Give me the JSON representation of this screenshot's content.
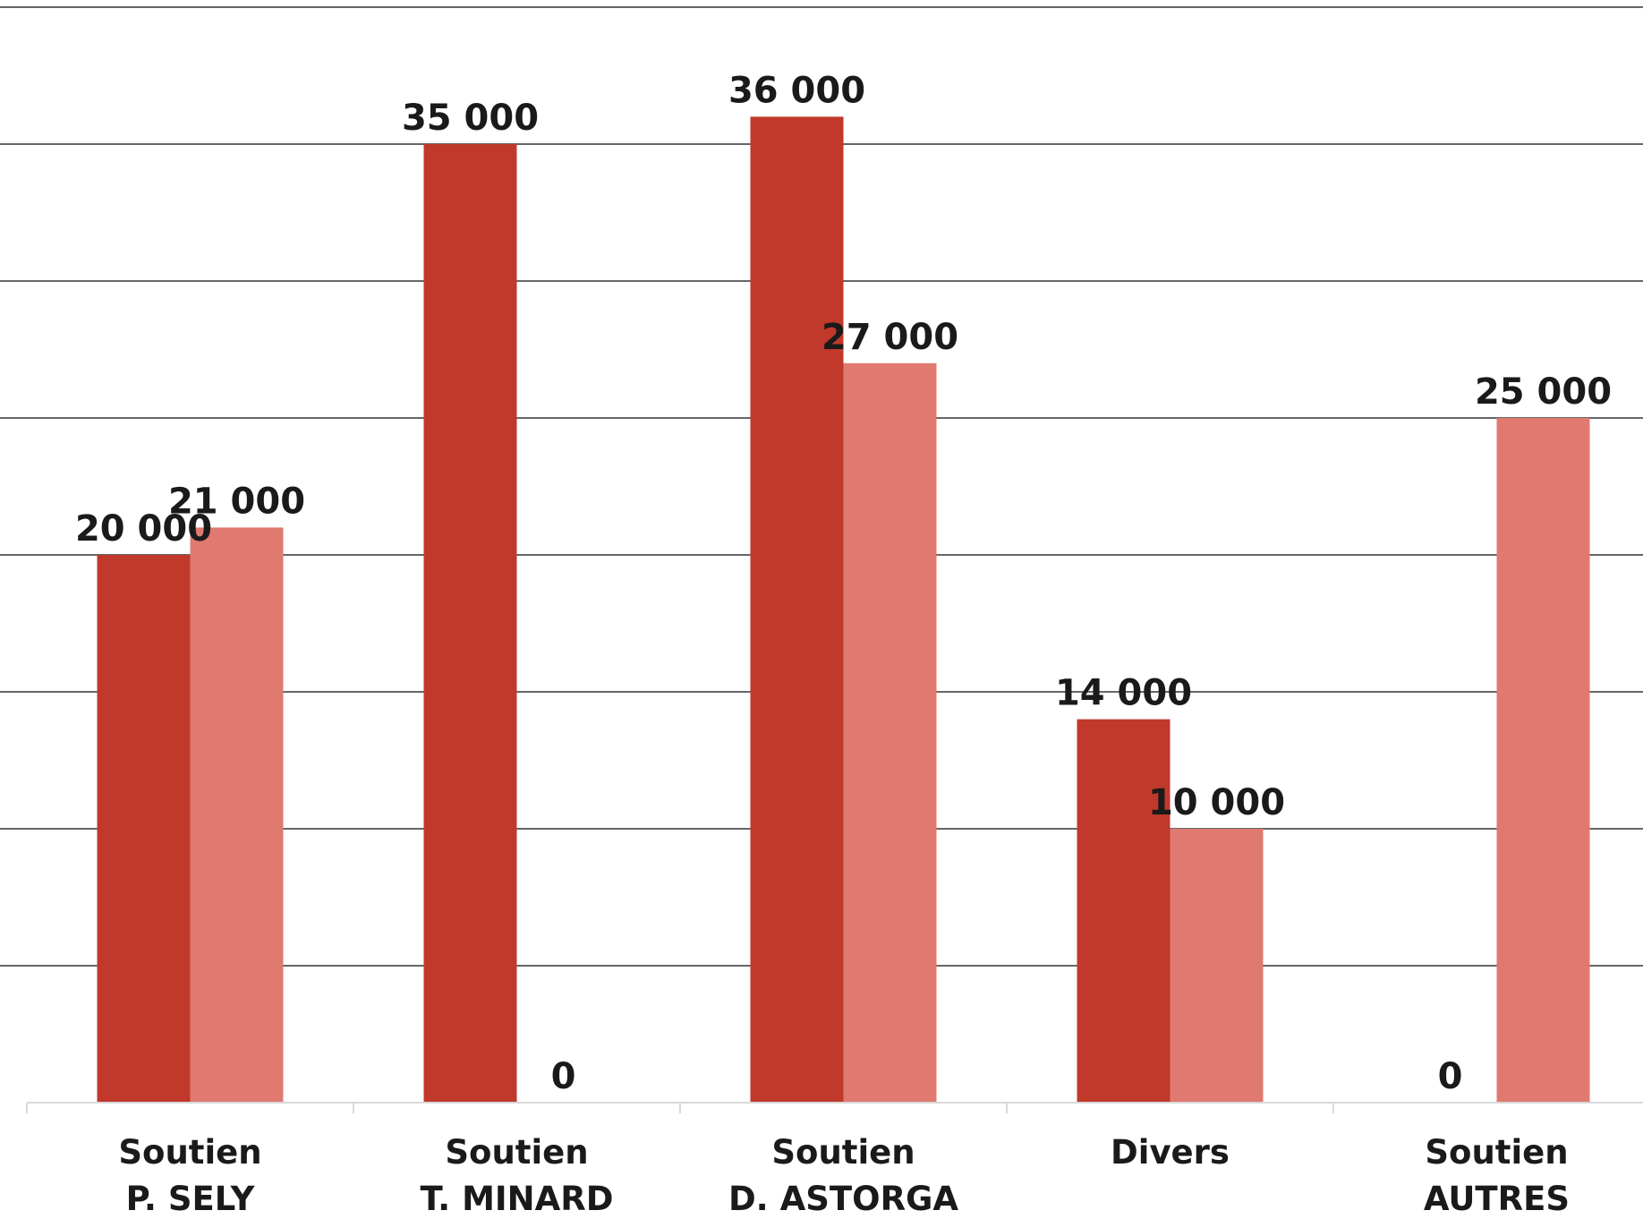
{
  "chart_data": {
    "type": "bar",
    "categories": [
      [
        "Soutien",
        "P. SELY"
      ],
      [
        "Soutien",
        "T. MINARD"
      ],
      [
        "Soutien",
        "D. ASTORGA"
      ],
      [
        "Divers"
      ],
      [
        "Soutien",
        "AUTRES"
      ]
    ],
    "series": [
      {
        "values": [
          20000,
          35000,
          36000,
          14000,
          0
        ],
        "value_labels": [
          "20 000",
          "35 000",
          "36 000",
          "14 000",
          "0"
        ],
        "color": "#c0392b"
      },
      {
        "values": [
          21000,
          0,
          27000,
          10000,
          25000
        ],
        "value_labels": [
          "21 000",
          "0",
          "27 000",
          "10 000",
          "25 000"
        ],
        "color": "#e07a70"
      }
    ],
    "ylim": [
      0,
      40000
    ],
    "grid_step": 5000,
    "grid": true,
    "legend": false
  }
}
